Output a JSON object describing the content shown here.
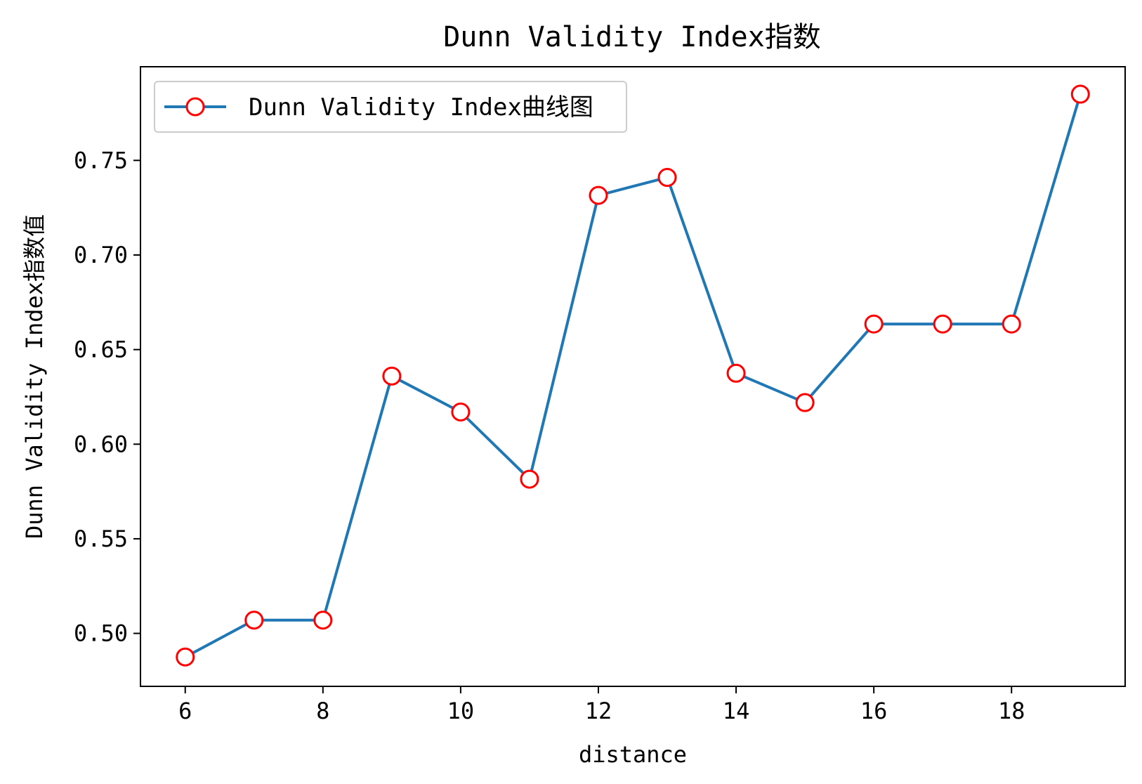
{
  "chart_data": {
    "type": "line",
    "title": "Dunn Validity Index指数",
    "xlabel": "distance",
    "ylabel": "Dunn Validity Index指数值",
    "xlim": [
      5.35,
      19.65
    ],
    "ylim": [
      0.472,
      0.7995
    ],
    "xticks": [
      6,
      8,
      10,
      12,
      14,
      16,
      18
    ],
    "xtick_labels": [
      "6",
      "8",
      "10",
      "12",
      "14",
      "16",
      "18"
    ],
    "yticks": [
      0.5,
      0.55,
      0.6,
      0.65,
      0.7,
      0.75
    ],
    "ytick_labels": [
      "0.50",
      "0.55",
      "0.60",
      "0.65",
      "0.70",
      "0.75"
    ],
    "grid": false,
    "legend_position": "top-left",
    "series": [
      {
        "name": "Dunn Validity Index曲线图",
        "color": "#1f77b4",
        "marker_edge_color": "#ff0000",
        "marker_face_color": "#ffffff",
        "x": [
          6,
          7,
          8,
          9,
          10,
          11,
          12,
          13,
          14,
          15,
          16,
          17,
          18,
          19
        ],
        "values": [
          0.4875,
          0.507,
          0.507,
          0.636,
          0.617,
          0.5815,
          0.7315,
          0.741,
          0.6375,
          0.622,
          0.6635,
          0.6635,
          0.6635,
          0.785
        ]
      }
    ]
  }
}
